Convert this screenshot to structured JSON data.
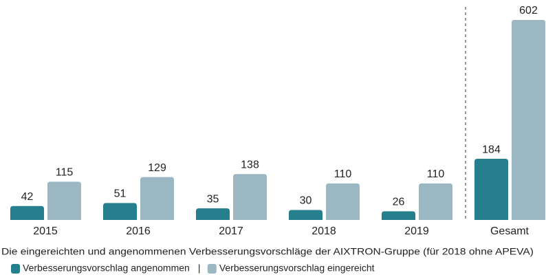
{
  "chart_data": {
    "type": "bar",
    "categories": [
      "2015",
      "2016",
      "2017",
      "2018",
      "2019",
      "Gesamt"
    ],
    "series": [
      {
        "name": "Verbesserungsvorschlag angenommen",
        "color": "#267f8c",
        "values": [
          42,
          51,
          35,
          30,
          26,
          184
        ]
      },
      {
        "name": "Verbesserungsvorschlag eingereicht",
        "color": "#9bb8c2",
        "values": [
          115,
          129,
          138,
          110,
          110,
          602
        ]
      }
    ],
    "caption": "Die eingereichten und angenommenen Verbesserungsvorschläge der AIXTRON-Gruppe (für 2018 ohne APEVA)",
    "legend_separator": "|"
  }
}
